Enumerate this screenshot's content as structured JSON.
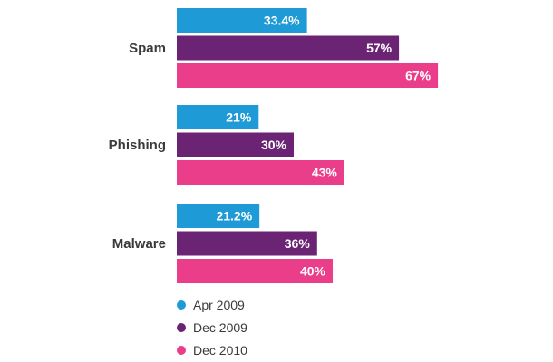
{
  "chart_data": {
    "type": "bar",
    "orientation": "horizontal",
    "categories": [
      "Spam",
      "Phishing",
      "Malware"
    ],
    "series": [
      {
        "name": "Apr 2009",
        "color": "#1e9ad6",
        "values": [
          33.4,
          21,
          21.2
        ],
        "labels": [
          "33.4%",
          "21%",
          "21.2%"
        ]
      },
      {
        "name": "Dec 2009",
        "color": "#6b2374",
        "values": [
          57,
          30,
          36
        ],
        "labels": [
          "57%",
          "30%",
          "36%"
        ]
      },
      {
        "name": "Dec 2010",
        "color": "#ea3d8a",
        "values": [
          67,
          43,
          40
        ],
        "labels": [
          "67%",
          "43%",
          "40%"
        ]
      }
    ],
    "xlim": [
      0,
      100
    ],
    "grid": false,
    "legend_position": "bottom-left"
  }
}
